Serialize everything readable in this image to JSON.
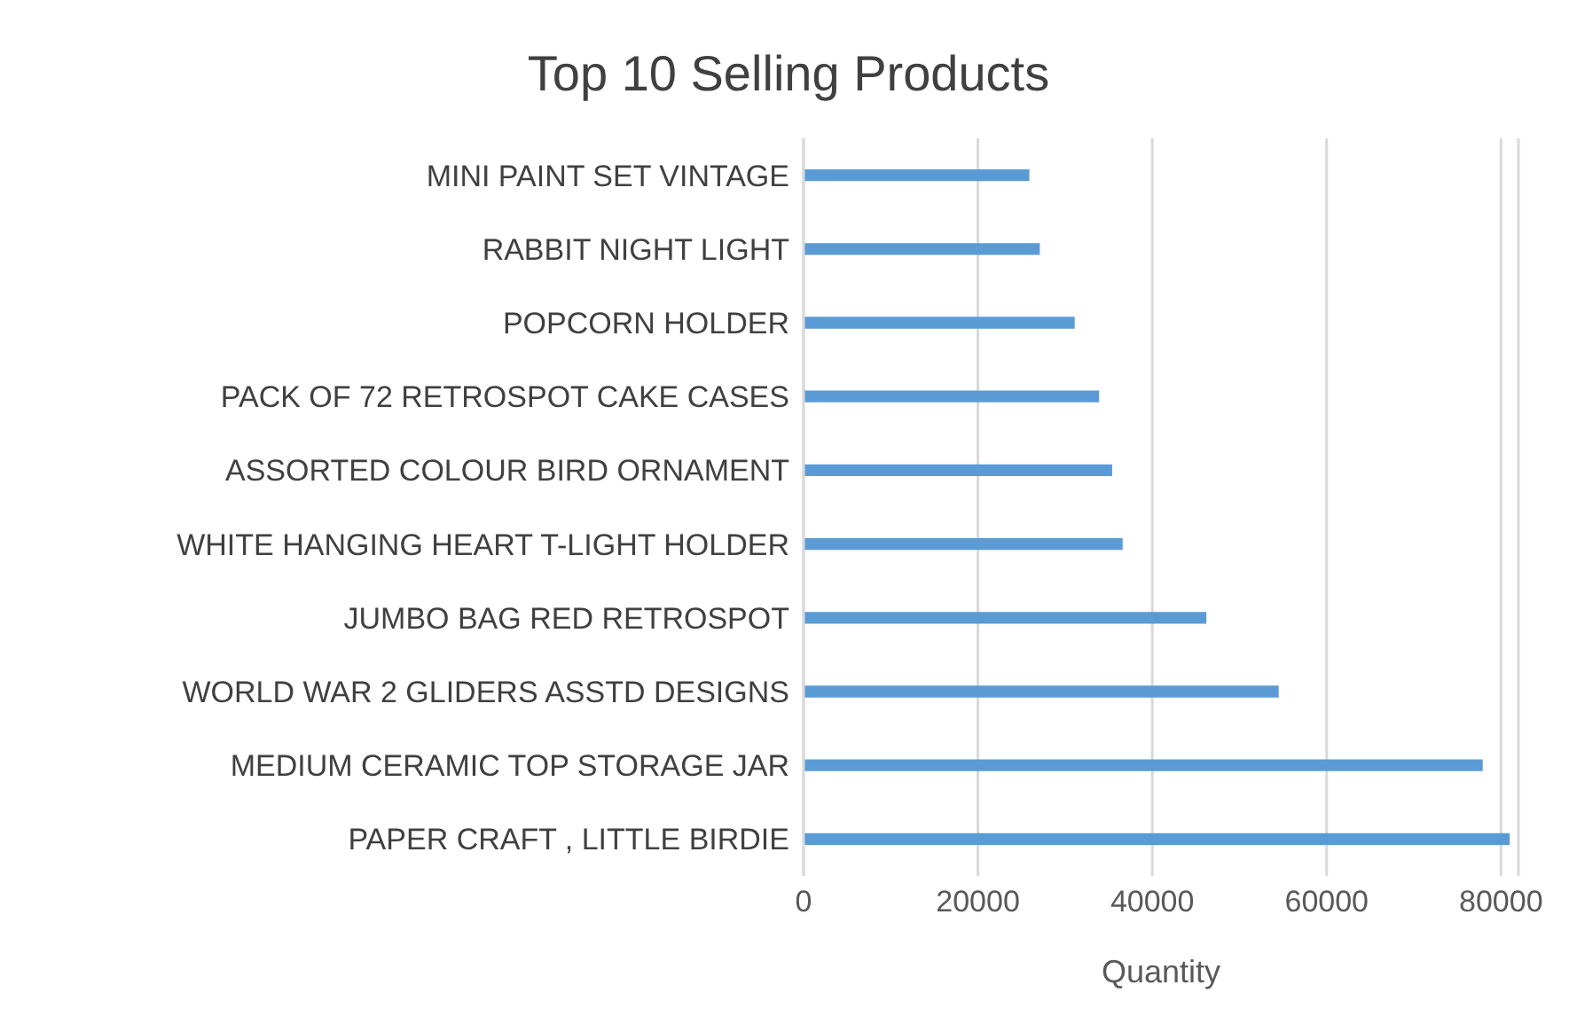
{
  "chart_data": {
    "type": "bar",
    "orientation": "horizontal",
    "title": "Top 10 Selling Products",
    "xlabel": "Quantity",
    "categories": [
      "MINI PAINT SET VINTAGE",
      "RABBIT NIGHT LIGHT",
      "POPCORN HOLDER",
      "PACK OF 72 RETROSPOT CAKE CASES",
      "ASSORTED COLOUR BIRD ORNAMENT",
      "WHITE HANGING HEART T-LIGHT HOLDER",
      "JUMBO BAG RED RETROSPOT",
      "WORLD WAR 2 GLIDERS ASSTD DESIGNS",
      "MEDIUM CERAMIC TOP STORAGE JAR",
      "PAPER CRAFT , LITTLE BIRDIE"
    ],
    "values": [
      25900,
      27100,
      31100,
      33900,
      35400,
      36600,
      46200,
      54500,
      77900,
      81000
    ],
    "color": "#5b9bd5",
    "xlim": [
      0,
      82000
    ],
    "xticks": [
      0,
      20000,
      40000,
      60000,
      80000
    ],
    "grid": "x",
    "legend": false
  }
}
